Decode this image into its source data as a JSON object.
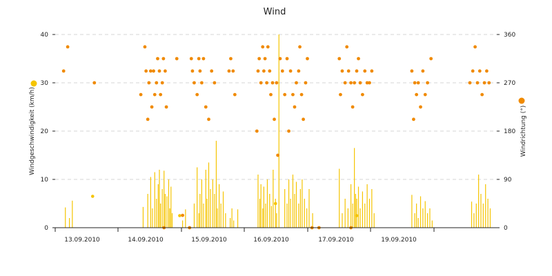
{
  "chart_data": {
    "type": "bar+scatter",
    "title": "Wind",
    "x_ticks": [
      "13.09.2010",
      "14.09.2010",
      "15.09.2010",
      "16.09.2010",
      "17.09.2010",
      "19.09.2010"
    ],
    "x_range_days": [
      0,
      7
    ],
    "y_left": {
      "label": "Windgeschwindigkeit (km/h)",
      "ticks": [
        0,
        10,
        20,
        30,
        40
      ],
      "range": [
        0,
        40
      ]
    },
    "y_right": {
      "label": "Windrichtung (°)",
      "ticks": [
        0,
        90,
        180,
        270,
        360
      ],
      "range": [
        0,
        360
      ]
    },
    "legend": {
      "left_marker_color": "#f5c400",
      "right_marker_color": "#f08a00"
    },
    "colors": {
      "speed": "#f5c400",
      "direction": "#f08a00"
    },
    "grid": true,
    "speed_series": {
      "name": "Windgeschwindigkeit",
      "points": [
        [
          0.08,
          4.2
        ],
        [
          0.15,
          2.0
        ],
        [
          0.2,
          5.6
        ],
        [
          1.42,
          4.3
        ],
        [
          1.5,
          7.0
        ],
        [
          1.55,
          10.5
        ],
        [
          1.58,
          4.0
        ],
        [
          1.62,
          11.5
        ],
        [
          1.65,
          6.0
        ],
        [
          1.68,
          9.0
        ],
        [
          1.7,
          12.0
        ],
        [
          1.72,
          5.0
        ],
        [
          1.75,
          8.0
        ],
        [
          1.78,
          11.8
        ],
        [
          1.8,
          7.0
        ],
        [
          1.83,
          6.5
        ],
        [
          1.86,
          10.0
        ],
        [
          1.88,
          4.0
        ],
        [
          1.9,
          8.5
        ],
        [
          1.92,
          3.0
        ],
        [
          2.1,
          1.5
        ],
        [
          2.15,
          3.8
        ],
        [
          2.3,
          5.0
        ],
        [
          2.35,
          12.5
        ],
        [
          2.38,
          3.0
        ],
        [
          2.4,
          7.0
        ],
        [
          2.43,
          10.0
        ],
        [
          2.46,
          5.0
        ],
        [
          2.5,
          12.0
        ],
        [
          2.52,
          6.0
        ],
        [
          2.55,
          13.5
        ],
        [
          2.58,
          8.0
        ],
        [
          2.62,
          10.0
        ],
        [
          2.65,
          7.0
        ],
        [
          2.68,
          18.0
        ],
        [
          2.7,
          4.0
        ],
        [
          2.73,
          9.0
        ],
        [
          2.76,
          5.0
        ],
        [
          2.8,
          7.5
        ],
        [
          2.84,
          3.0
        ],
        [
          2.92,
          2.0
        ],
        [
          2.95,
          4.0
        ],
        [
          2.98,
          1.5
        ],
        [
          3.05,
          3.8
        ],
        [
          3.4,
          11.0
        ],
        [
          3.43,
          6.0
        ],
        [
          3.45,
          9.0
        ],
        [
          3.48,
          4.0
        ],
        [
          3.5,
          8.5
        ],
        [
          3.53,
          5.0
        ],
        [
          3.56,
          10.0
        ],
        [
          3.6,
          7.0
        ],
        [
          3.63,
          4.5
        ],
        [
          3.66,
          12.0
        ],
        [
          3.7,
          6.0
        ],
        [
          3.72,
          3.0
        ],
        [
          3.76,
          40.0
        ],
        [
          3.86,
          8.0
        ],
        [
          3.9,
          5.0
        ],
        [
          3.93,
          10.0
        ],
        [
          3.96,
          6.0
        ],
        [
          4.0,
          11.0
        ],
        [
          4.03,
          7.0
        ],
        [
          4.06,
          9.5
        ],
        [
          4.1,
          5.0
        ],
        [
          4.13,
          8.0
        ],
        [
          4.16,
          10.0
        ],
        [
          4.2,
          6.0
        ],
        [
          4.24,
          4.0
        ],
        [
          4.28,
          8.0
        ],
        [
          4.34,
          3.0
        ],
        [
          4.8,
          12.2
        ],
        [
          4.85,
          3.0
        ],
        [
          4.9,
          6.0
        ],
        [
          4.95,
          4.0
        ],
        [
          5.0,
          9.0
        ],
        [
          5.03,
          5.0
        ],
        [
          5.06,
          16.5
        ],
        [
          5.08,
          7.0
        ],
        [
          5.1,
          6.0
        ],
        [
          5.13,
          8.5
        ],
        [
          5.16,
          4.0
        ],
        [
          5.2,
          7.5
        ],
        [
          5.24,
          5.0
        ],
        [
          5.28,
          9.0
        ],
        [
          5.32,
          6.0
        ],
        [
          5.36,
          8.0
        ],
        [
          5.4,
          3.0
        ],
        [
          6.05,
          6.8
        ],
        [
          6.1,
          3.0
        ],
        [
          6.13,
          5.0
        ],
        [
          6.16,
          2.0
        ],
        [
          6.2,
          6.5
        ],
        [
          6.24,
          4.0
        ],
        [
          6.28,
          5.5
        ],
        [
          6.32,
          3.0
        ],
        [
          6.36,
          4.0
        ],
        [
          6.4,
          1.5
        ],
        [
          7.08,
          5.4
        ],
        [
          7.12,
          3.0
        ],
        [
          7.16,
          5.0
        ],
        [
          7.2,
          11.0
        ],
        [
          7.24,
          7.0
        ],
        [
          7.28,
          5.0
        ],
        [
          7.32,
          9.0
        ],
        [
          7.36,
          6.0
        ],
        [
          7.4,
          4.0
        ]
      ]
    },
    "direction_series": {
      "name": "Windrichtung",
      "points": [
        [
          0.05,
          292
        ],
        [
          0.12,
          337
        ],
        [
          0.58,
          270
        ],
        [
          1.38,
          248
        ],
        [
          1.45,
          337
        ],
        [
          1.47,
          292
        ],
        [
          1.5,
          202
        ],
        [
          1.52,
          270
        ],
        [
          1.55,
          292
        ],
        [
          1.57,
          225
        ],
        [
          1.6,
          292
        ],
        [
          1.62,
          248
        ],
        [
          1.65,
          270
        ],
        [
          1.67,
          315
        ],
        [
          1.7,
          292
        ],
        [
          1.72,
          248
        ],
        [
          1.75,
          270
        ],
        [
          1.77,
          315
        ],
        [
          1.8,
          292
        ],
        [
          1.82,
          225
        ],
        [
          2.0,
          315
        ],
        [
          2.1,
          23
        ],
        [
          2.25,
          315
        ],
        [
          2.27,
          292
        ],
        [
          2.3,
          270
        ],
        [
          2.35,
          248
        ],
        [
          2.38,
          315
        ],
        [
          2.4,
          292
        ],
        [
          2.43,
          270
        ],
        [
          2.46,
          315
        ],
        [
          2.5,
          225
        ],
        [
          2.55,
          202
        ],
        [
          2.6,
          292
        ],
        [
          2.65,
          270
        ],
        [
          2.9,
          292
        ],
        [
          2.93,
          315
        ],
        [
          2.97,
          292
        ],
        [
          3.0,
          248
        ],
        [
          3.38,
          180
        ],
        [
          3.4,
          292
        ],
        [
          3.42,
          315
        ],
        [
          3.45,
          270
        ],
        [
          3.48,
          337
        ],
        [
          3.5,
          292
        ],
        [
          3.52,
          315
        ],
        [
          3.55,
          270
        ],
        [
          3.57,
          337
        ],
        [
          3.6,
          292
        ],
        [
          3.62,
          248
        ],
        [
          3.65,
          270
        ],
        [
          3.68,
          202
        ],
        [
          3.72,
          270
        ],
        [
          3.74,
          135
        ],
        [
          3.78,
          315
        ],
        [
          3.82,
          292
        ],
        [
          3.86,
          248
        ],
        [
          3.9,
          315
        ],
        [
          3.93,
          180
        ],
        [
          3.96,
          292
        ],
        [
          4.0,
          248
        ],
        [
          4.03,
          225
        ],
        [
          4.06,
          270
        ],
        [
          4.1,
          292
        ],
        [
          4.12,
          337
        ],
        [
          4.15,
          248
        ],
        [
          4.18,
          202
        ],
        [
          4.22,
          270
        ],
        [
          4.25,
          315
        ],
        [
          4.8,
          315
        ],
        [
          4.82,
          248
        ],
        [
          4.85,
          292
        ],
        [
          4.9,
          270
        ],
        [
          4.93,
          337
        ],
        [
          4.96,
          292
        ],
        [
          5.0,
          270
        ],
        [
          5.03,
          225
        ],
        [
          5.06,
          270
        ],
        [
          5.1,
          292
        ],
        [
          5.13,
          315
        ],
        [
          5.16,
          270
        ],
        [
          5.2,
          248
        ],
        [
          5.24,
          292
        ],
        [
          5.28,
          270
        ],
        [
          5.32,
          270
        ],
        [
          5.36,
          292
        ],
        [
          6.05,
          292
        ],
        [
          6.08,
          202
        ],
        [
          6.1,
          270
        ],
        [
          6.13,
          248
        ],
        [
          6.16,
          270
        ],
        [
          6.2,
          225
        ],
        [
          6.24,
          292
        ],
        [
          6.28,
          248
        ],
        [
          6.32,
          270
        ],
        [
          6.38,
          315
        ],
        [
          7.05,
          270
        ],
        [
          7.1,
          292
        ],
        [
          7.14,
          337
        ],
        [
          7.18,
          270
        ],
        [
          7.22,
          292
        ],
        [
          7.26,
          248
        ],
        [
          7.3,
          270
        ],
        [
          7.34,
          292
        ],
        [
          7.38,
          270
        ]
      ]
    },
    "speed_markers": [
      [
        0.55,
        6.5
      ],
      [
        2.05,
        2.5
      ],
      [
        5.1,
        2.5
      ],
      [
        3.7,
        5.0
      ]
    ],
    "direction_markers_bottom": [
      [
        1.78,
        0
      ],
      [
        2.22,
        0
      ],
      [
        4.33,
        0
      ],
      [
        4.45,
        0
      ],
      [
        5.0,
        0
      ]
    ]
  }
}
